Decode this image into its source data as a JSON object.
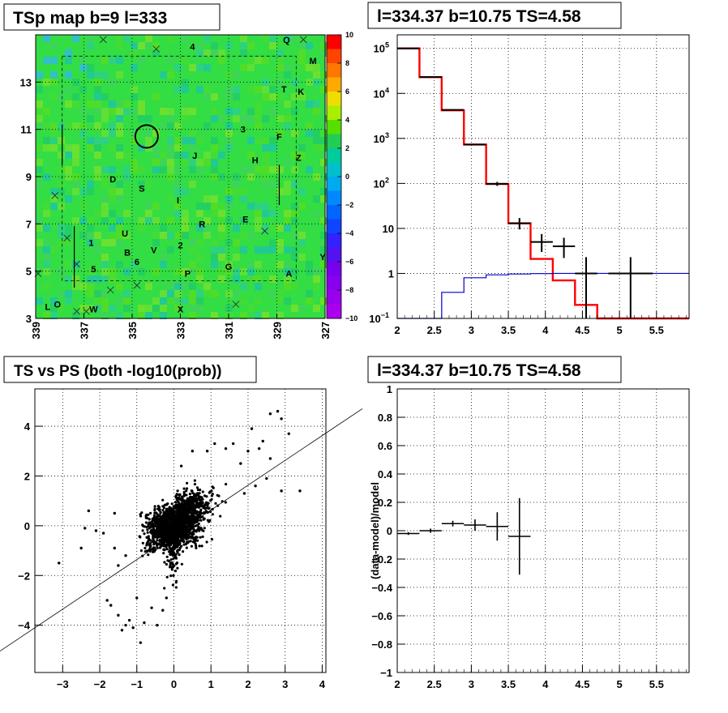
{
  "colors": {
    "hist_red": "#ff0000",
    "hist_blue": "#0000cc",
    "data_black": "#000000",
    "map_base": "#33dd44",
    "grid": "#000000"
  },
  "chart_data": [
    {
      "type": "heatmap",
      "title": "TSp map b=9 l=333",
      "x_ticks": [
        "339",
        "337",
        "335",
        "333",
        "331",
        "329",
        "327"
      ],
      "y_ticks": [
        "3",
        "5",
        "7",
        "9",
        "11",
        "13"
      ],
      "xlim": [
        339,
        327
      ],
      "ylim": [
        3,
        15
      ],
      "colorbar_ticks": [
        "10",
        "8",
        "6",
        "4",
        "2",
        "0",
        "−2",
        "−4",
        "−6",
        "−8",
        "−10"
      ],
      "colorbar_range": [
        -10,
        10
      ],
      "circle_center": {
        "l": 334.4,
        "b": 10.7
      },
      "labels": [
        {
          "text": "Q",
          "l": 328.6,
          "b": 14.8
        },
        {
          "text": "4",
          "l": 332.5,
          "b": 14.5
        },
        {
          "text": "M",
          "l": 327.5,
          "b": 13.9
        },
        {
          "text": "T",
          "l": 328.7,
          "b": 12.7
        },
        {
          "text": "K",
          "l": 328.0,
          "b": 12.6
        },
        {
          "text": "3",
          "l": 330.4,
          "b": 11.0
        },
        {
          "text": "F",
          "l": 328.9,
          "b": 10.7
        },
        {
          "text": "J",
          "l": 332.4,
          "b": 9.9
        },
        {
          "text": "H",
          "l": 329.9,
          "b": 9.7
        },
        {
          "text": "Z",
          "l": 328.1,
          "b": 9.8
        },
        {
          "text": "D",
          "l": 335.8,
          "b": 8.9
        },
        {
          "text": "S",
          "l": 334.6,
          "b": 8.5
        },
        {
          "text": "I",
          "l": 333.1,
          "b": 8.0
        },
        {
          "text": "R",
          "l": 332.1,
          "b": 7.0
        },
        {
          "text": "E",
          "l": 330.3,
          "b": 7.2
        },
        {
          "text": "U",
          "l": 335.3,
          "b": 6.6
        },
        {
          "text": "1",
          "l": 336.7,
          "b": 6.2
        },
        {
          "text": "B",
          "l": 335.2,
          "b": 5.8
        },
        {
          "text": "V",
          "l": 334.1,
          "b": 5.9
        },
        {
          "text": "2",
          "l": 333.0,
          "b": 6.1
        },
        {
          "text": "6",
          "l": 334.8,
          "b": 5.4
        },
        {
          "text": "5",
          "l": 336.6,
          "b": 5.1
        },
        {
          "text": "G",
          "l": 331.0,
          "b": 5.2
        },
        {
          "text": "P",
          "l": 332.7,
          "b": 4.9
        },
        {
          "text": "A",
          "l": 328.5,
          "b": 4.9
        },
        {
          "text": "Y",
          "l": 327.1,
          "b": 5.6
        },
        {
          "text": "O",
          "l": 338.1,
          "b": 3.6
        },
        {
          "text": "L",
          "l": 338.5,
          "b": 3.5
        },
        {
          "text": "W",
          "l": 336.6,
          "b": 3.4
        },
        {
          "text": "X",
          "l": 333.0,
          "b": 3.4
        }
      ],
      "crosses": [
        {
          "l": 336.2,
          "b": 14.8
        },
        {
          "l": 334.0,
          "b": 14.4
        },
        {
          "l": 327.9,
          "b": 14.8
        },
        {
          "l": 338.2,
          "b": 8.2
        },
        {
          "l": 337.7,
          "b": 6.4
        },
        {
          "l": 337.3,
          "b": 5.3
        },
        {
          "l": 338.9,
          "b": 4.9
        },
        {
          "l": 335.9,
          "b": 4.2
        },
        {
          "l": 334.8,
          "b": 4.4
        },
        {
          "l": 337.3,
          "b": 3.3
        },
        {
          "l": 336.9,
          "b": 3.3
        },
        {
          "l": 330.7,
          "b": 3.6
        },
        {
          "l": 329.5,
          "b": 6.7
        }
      ]
    },
    {
      "type": "line",
      "title": "l=334.37 b=10.75 TS=4.58",
      "x_ticks": [
        "2",
        "2.5",
        "3",
        "3.5",
        "4",
        "4.5",
        "5",
        "5.5"
      ],
      "y_ticks": [
        "10^-1",
        "1",
        "10",
        "10^2",
        "10^3",
        "10^4",
        "10^5"
      ],
      "xlim": [
        2,
        5.94
      ],
      "ylim_log": [
        0.1,
        200000
      ],
      "series": [
        {
          "style": "hist_red",
          "bin_edges": [
            2.0,
            2.3,
            2.6,
            2.9,
            3.2,
            3.5,
            3.8,
            4.1,
            4.4,
            4.7,
            5.0,
            5.94
          ],
          "values": [
            100000,
            23000,
            4200,
            730,
            97,
            13,
            2.1,
            0.7,
            0.2,
            0.1,
            0.1
          ]
        },
        {
          "style": "hist_blue",
          "bin_edges": [
            2.0,
            2.3,
            2.6,
            2.9,
            3.2,
            3.5,
            3.8,
            4.1,
            4.4,
            4.7,
            5.0,
            5.94
          ],
          "values": [
            0.1,
            0.1,
            0.38,
            0.8,
            0.93,
            0.97,
            0.99,
            1.0,
            1.0,
            1.0,
            1.0
          ]
        },
        {
          "style": "data_black",
          "points": [
            {
              "x": 2.15,
              "y": 100000,
              "xerr": 0.15,
              "ylo": 99000,
              "yhi": 101000
            },
            {
              "x": 2.45,
              "y": 23000,
              "xerr": 0.15,
              "ylo": 22800,
              "yhi": 23200
            },
            {
              "x": 2.75,
              "y": 4300,
              "xerr": 0.15,
              "ylo": 4230,
              "yhi": 4370
            },
            {
              "x": 3.05,
              "y": 730,
              "xerr": 0.15,
              "ylo": 700,
              "yhi": 760
            },
            {
              "x": 3.35,
              "y": 98,
              "xerr": 0.15,
              "ylo": 88,
              "yhi": 108
            },
            {
              "x": 3.65,
              "y": 13,
              "xerr": 0.15,
              "ylo": 9.5,
              "yhi": 17
            },
            {
              "x": 3.95,
              "y": 5,
              "xerr": 0.15,
              "ylo": 3,
              "yhi": 7.5
            },
            {
              "x": 4.25,
              "y": 4,
              "xerr": 0.15,
              "ylo": 2.2,
              "yhi": 6.2
            },
            {
              "x": 4.55,
              "y": 1,
              "xerr": 0.15,
              "ylo": 0.1,
              "yhi": 2.3
            },
            {
              "x": 5.15,
              "y": 1,
              "xerr": 0.3,
              "ylo": 0.1,
              "yhi": 2.3
            }
          ]
        }
      ]
    },
    {
      "type": "scatter",
      "title": "TS vs PS (both -log10(prob))",
      "x_ticks": [
        "−3",
        "−2",
        "−1",
        "0",
        "1",
        "2",
        "3",
        "4"
      ],
      "y_ticks": [
        "−4",
        "−2",
        "0",
        "2",
        "4"
      ],
      "xlim": [
        -3.75,
        4.1
      ],
      "ylim": [
        -5.9,
        5.5
      ],
      "reference_line": {
        "x1": -4.5,
        "y1": -4.85,
        "x2": 5,
        "y2": 4.62
      },
      "outliers": [
        [
          -3.1,
          -1.5
        ],
        [
          -2.5,
          -0.9
        ],
        [
          -2.4,
          -0.1
        ],
        [
          -2.1,
          -0.2
        ],
        [
          -1.9,
          -0.3
        ],
        [
          -1.8,
          -3.0
        ],
        [
          -1.7,
          -3.2
        ],
        [
          -1.5,
          -3.6
        ],
        [
          -1.4,
          -4.2
        ],
        [
          -1.3,
          -4.0
        ],
        [
          -1.2,
          -3.8
        ],
        [
          -1.1,
          -4.1
        ],
        [
          -0.9,
          -4.7
        ],
        [
          -1.5,
          -1.6
        ],
        [
          -1.6,
          -0.9
        ],
        [
          -1.3,
          -1.2
        ],
        [
          -1.0,
          -2.9
        ],
        [
          -0.8,
          -3.9
        ],
        [
          -0.6,
          -3.3
        ],
        [
          -0.45,
          -4.0
        ],
        [
          -0.3,
          -3.4
        ],
        [
          -0.2,
          -2.9
        ],
        [
          0.2,
          2.4
        ],
        [
          0.5,
          3.0
        ],
        [
          0.9,
          3.0
        ],
        [
          1.1,
          3.3
        ],
        [
          1.4,
          3.1
        ],
        [
          1.6,
          3.3
        ],
        [
          1.8,
          2.5
        ],
        [
          2.0,
          3.0
        ],
        [
          2.1,
          3.9
        ],
        [
          2.3,
          3.1
        ],
        [
          2.4,
          3.4
        ],
        [
          2.6,
          2.7
        ],
        [
          2.6,
          4.5
        ],
        [
          2.8,
          4.6
        ],
        [
          2.9,
          4.3
        ],
        [
          3.1,
          3.7
        ],
        [
          3.4,
          1.4
        ],
        [
          2.9,
          1.4
        ],
        [
          2.5,
          1.9
        ],
        [
          2.2,
          1.6
        ],
        [
          1.9,
          1.3
        ],
        [
          -2.3,
          0.6
        ],
        [
          -1.6,
          0.5
        ]
      ]
    },
    {
      "type": "line",
      "title": "l=334.37 b=10.75 TS=4.58",
      "ylabel": "(data-model)/model",
      "x_ticks": [
        "2",
        "2.5",
        "3",
        "3.5",
        "4",
        "4.5",
        "5",
        "5.5"
      ],
      "y_ticks": [
        "−1",
        "−0.8",
        "−0.6",
        "−0.4",
        "−0.2",
        "0",
        "0.2",
        "0.4",
        "0.6",
        "0.8",
        "1"
      ],
      "xlim": [
        2,
        5.94
      ],
      "ylim": [
        -1,
        1
      ],
      "points": [
        {
          "x": 2.15,
          "y": -0.02,
          "xerr": 0.15,
          "yerr": 0.01
        },
        {
          "x": 2.45,
          "y": 0.0,
          "xerr": 0.15,
          "yerr": 0.015
        },
        {
          "x": 2.75,
          "y": 0.05,
          "xerr": 0.15,
          "yerr": 0.02
        },
        {
          "x": 3.05,
          "y": 0.04,
          "xerr": 0.15,
          "yerr": 0.04
        },
        {
          "x": 3.35,
          "y": 0.03,
          "xerr": 0.15,
          "yerr": 0.1
        },
        {
          "x": 3.65,
          "y": -0.04,
          "xerr": 0.15,
          "yerr": 0.27
        }
      ]
    }
  ]
}
